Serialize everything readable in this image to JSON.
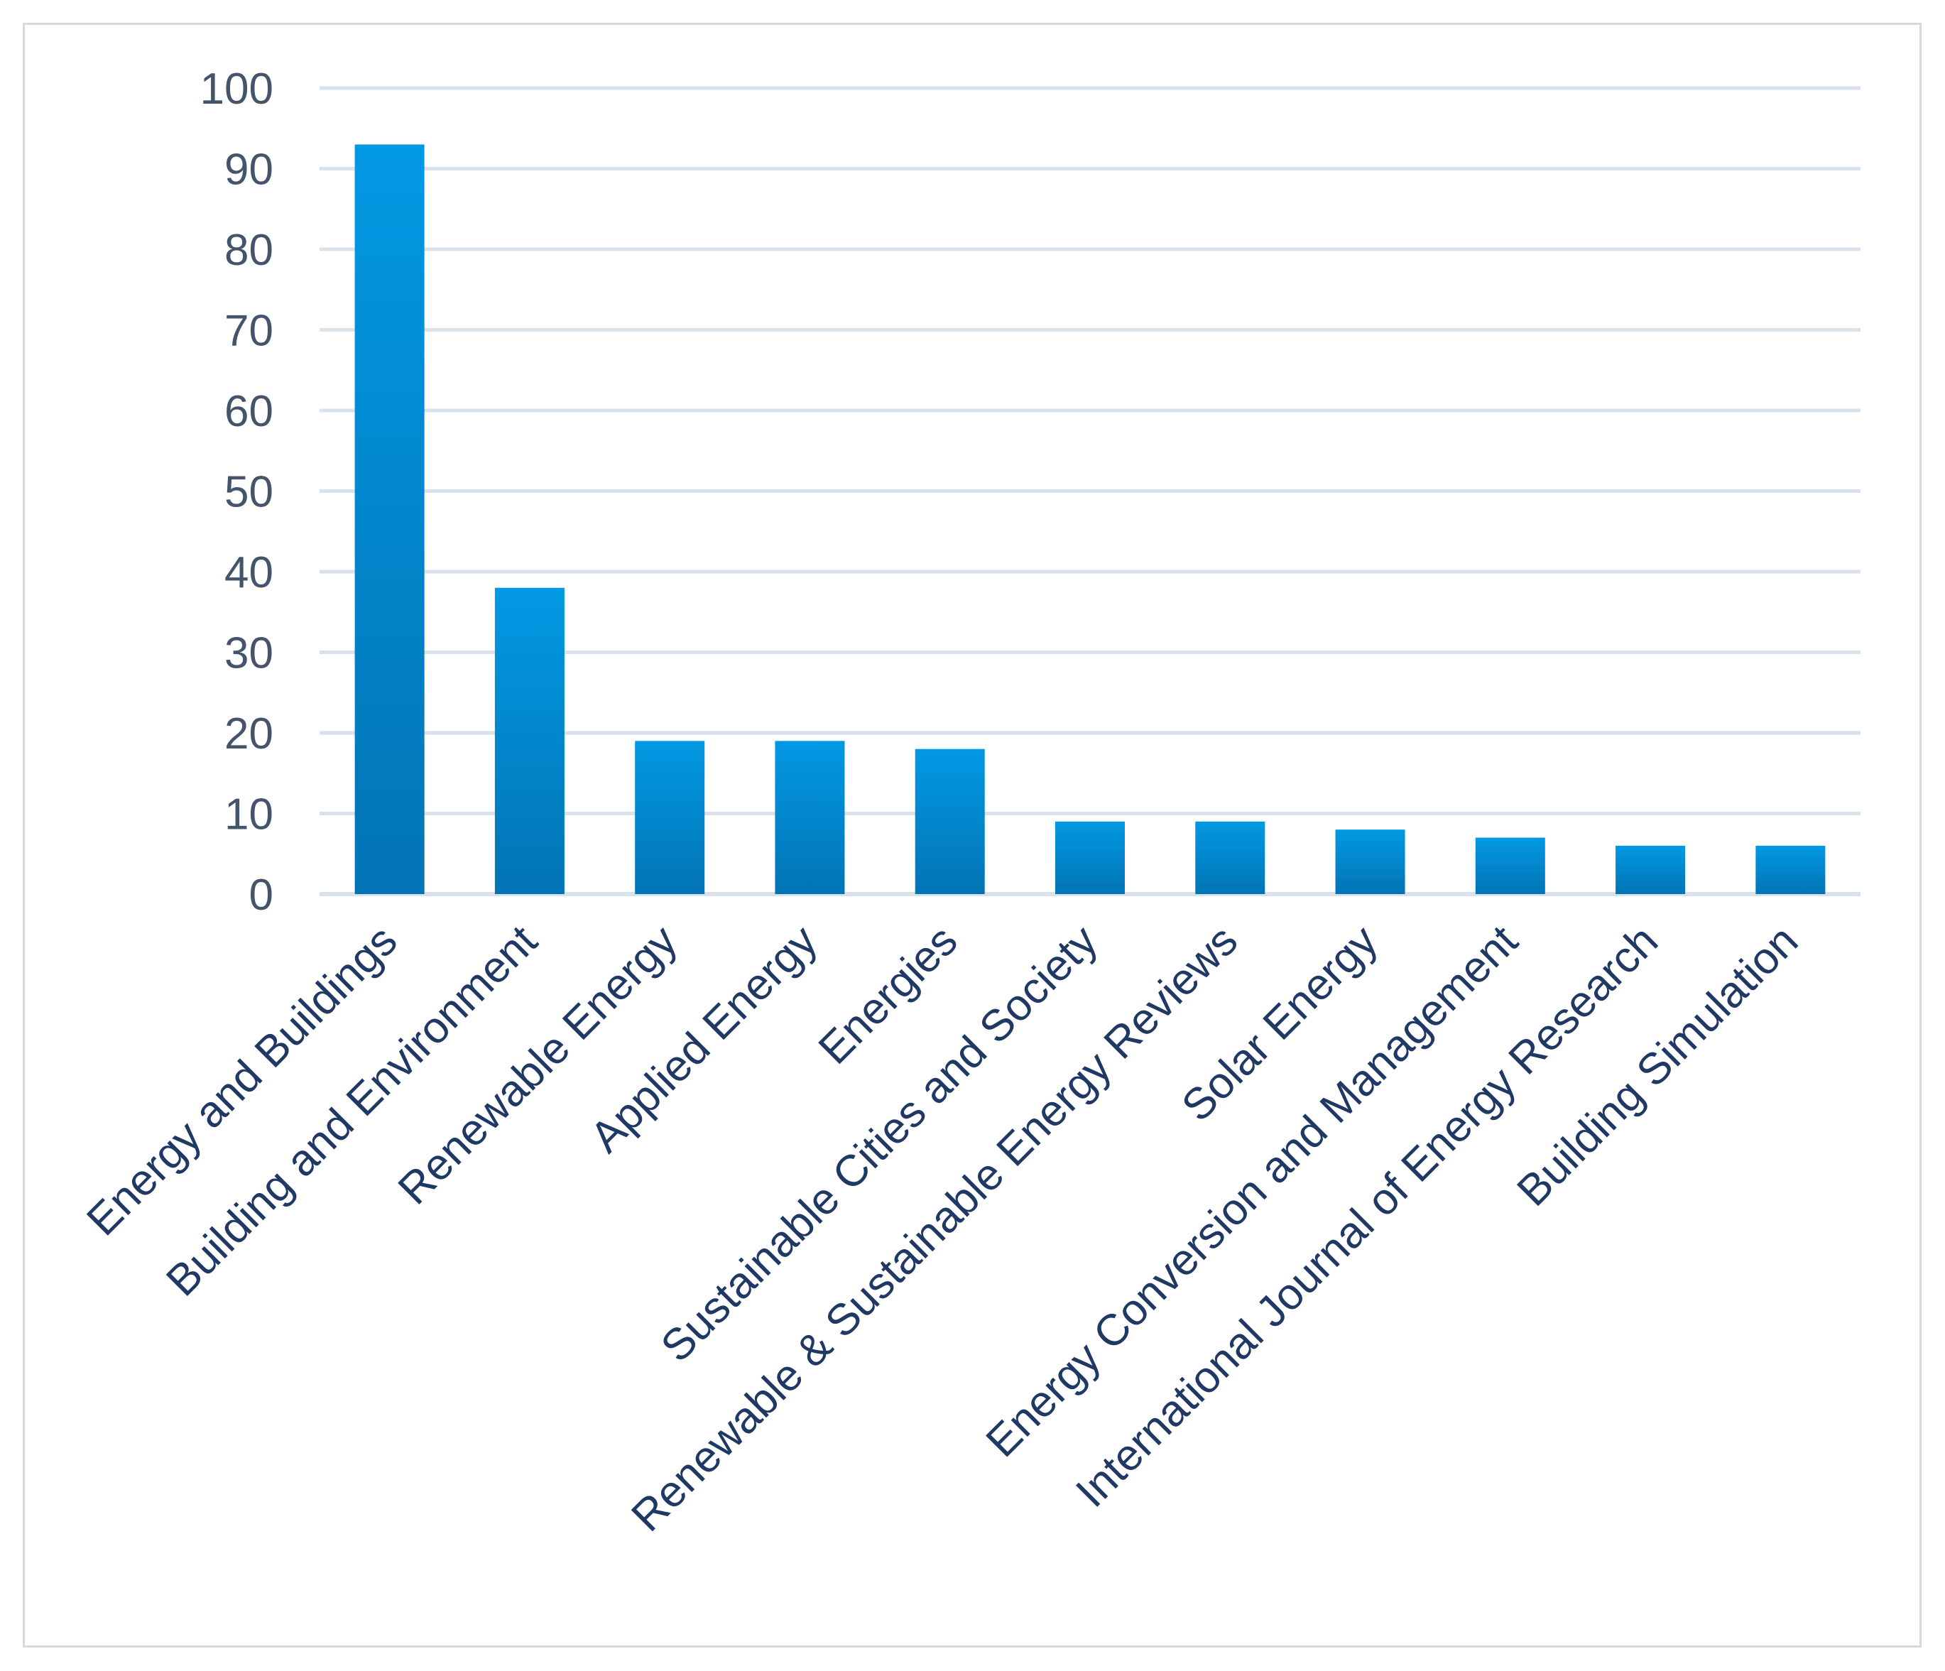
{
  "chart_data": {
    "type": "bar",
    "title": "",
    "xlabel": "",
    "ylabel": "",
    "categories": [
      "Energy and Buildings",
      "Building and Environment",
      "Renewable Energy",
      "Applied Energy",
      "Energies",
      "Sustainable Cities and Society",
      "Renewable & Sustainable Energy Reviews",
      "Solar Energy",
      "Energy Conversion and Management",
      "International Journal of Energy Research",
      "Building Simulation"
    ],
    "values": [
      93,
      38,
      19,
      19,
      18,
      9,
      9,
      8,
      7,
      6,
      6
    ],
    "ylim": [
      0,
      100
    ],
    "yticks": [
      0,
      10,
      20,
      30,
      40,
      50,
      60,
      70,
      80,
      90,
      100
    ],
    "ytick_labels": [
      "0",
      "10",
      "20",
      "30",
      "40",
      "50",
      "60",
      "70",
      "80",
      "90",
      "100"
    ],
    "grid": true,
    "legend": "none",
    "colors": {
      "bar_top": "#0299e3",
      "bar_bottom": "#0274b5",
      "grid": "#d9e1ea",
      "tick_text": "#44546a",
      "category_text": "#1f3864"
    }
  }
}
